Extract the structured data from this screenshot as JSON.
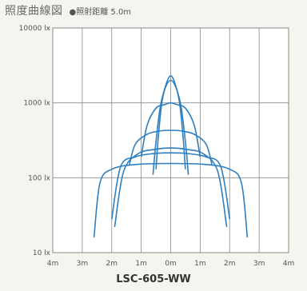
{
  "header": {
    "title": "照度曲線図",
    "note": "●照射距離 5.0m"
  },
  "model": "LSC-605-WW",
  "colors": {
    "background": "#f5f4ef",
    "plot_background": "#ffffff",
    "grid": "#8a8a8a",
    "curve": "#2f7fc0"
  },
  "chart_data": {
    "type": "line",
    "title": "",
    "xlabel": "",
    "ylabel": "",
    "yscale": "log",
    "xlim": [
      -4,
      4
    ],
    "ylim": [
      10,
      10000
    ],
    "grid": true,
    "x_ticks": [
      {
        "value": -4,
        "label": "4m"
      },
      {
        "value": -3,
        "label": "3m"
      },
      {
        "value": -2,
        "label": "2m"
      },
      {
        "value": -1,
        "label": "1m"
      },
      {
        "value": 0,
        "label": "0m"
      },
      {
        "value": 1,
        "label": "1m"
      },
      {
        "value": 2,
        "label": "2m"
      },
      {
        "value": 3,
        "label": "3m"
      },
      {
        "value": 4,
        "label": "4m"
      }
    ],
    "y_ticks": [
      {
        "value": 10000,
        "label": "10000 lx"
      },
      {
        "value": 1000,
        "label": "1000 lx"
      },
      {
        "value": 100,
        "label": "100 lx"
      },
      {
        "value": 10,
        "label": "10 lx"
      }
    ],
    "series": [
      {
        "x": [
          -0.5,
          -0.42,
          -0.3,
          -0.15,
          0,
          0.15,
          0.3,
          0.42,
          0.5
        ],
        "y": [
          130,
          350,
          1000,
          1800,
          2300,
          1800,
          1000,
          350,
          130
        ]
      },
      {
        "x": [
          -0.6,
          -0.5,
          -0.35,
          -0.18,
          0,
          0.18,
          0.35,
          0.5,
          0.6
        ],
        "y": [
          110,
          300,
          900,
          1600,
          2000,
          1600,
          900,
          300,
          110
        ]
      },
      {
        "x": [
          -1.0,
          -0.8,
          -0.5,
          -0.2,
          0,
          0.2,
          0.5,
          0.8,
          1.0
        ],
        "y": [
          190,
          500,
          850,
          950,
          1000,
          950,
          850,
          500,
          190
        ]
      },
      {
        "x": [
          -1.4,
          -1.2,
          -0.8,
          -0.4,
          0,
          0.4,
          0.8,
          1.2,
          1.4
        ],
        "y": [
          150,
          280,
          380,
          420,
          430,
          420,
          380,
          280,
          150
        ]
      },
      {
        "x": [
          -1.9,
          -1.6,
          -1.1,
          -0.5,
          0,
          0.5,
          1.1,
          1.6,
          1.9
        ],
        "y": [
          22,
          120,
          210,
          240,
          250,
          240,
          210,
          120,
          22
        ]
      },
      {
        "x": [
          -2.0,
          -1.7,
          -1.2,
          -0.6,
          0,
          0.6,
          1.2,
          1.7,
          2.0
        ],
        "y": [
          28,
          140,
          190,
          210,
          215,
          210,
          190,
          140,
          28
        ]
      },
      {
        "x": [
          -2.6,
          -2.4,
          -2.0,
          -1.2,
          0,
          1.2,
          2.0,
          2.4,
          2.6
        ],
        "y": [
          16,
          85,
          130,
          150,
          155,
          150,
          130,
          85,
          16
        ]
      }
    ]
  }
}
